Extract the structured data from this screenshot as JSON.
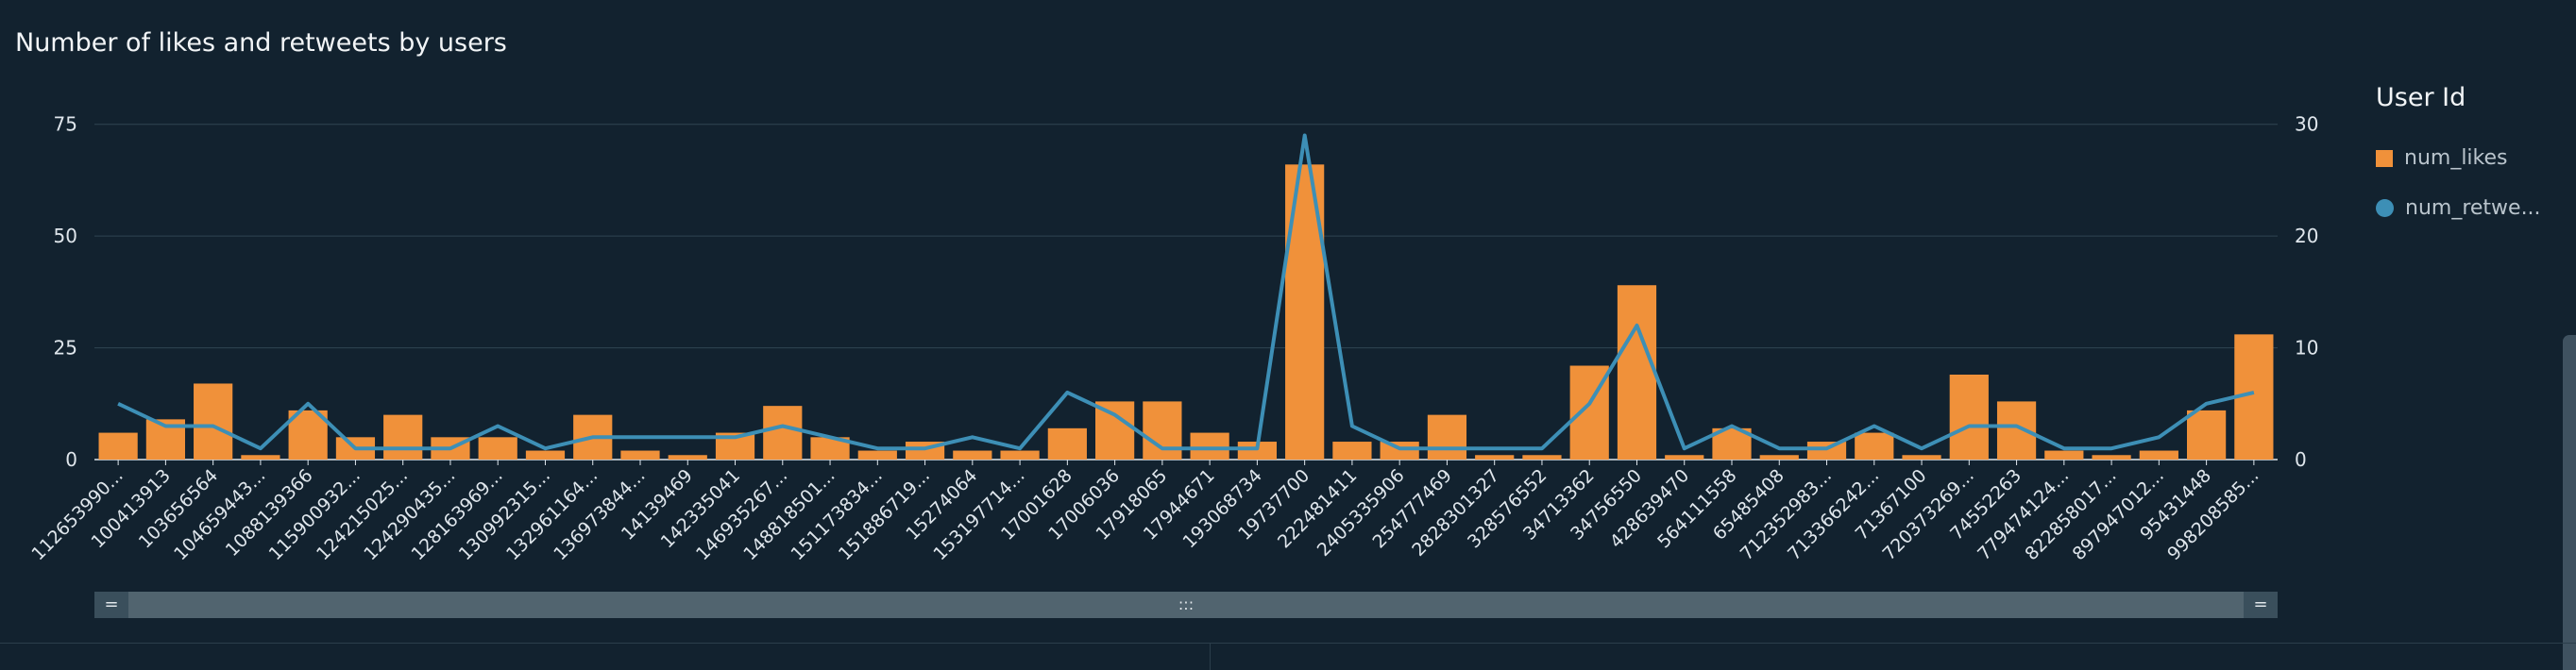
{
  "chart_data": {
    "type": "bar",
    "title": "Number of likes and retweets by users",
    "legend_title": "User Id",
    "legend_position": "right",
    "categories": [
      "112653990...",
      "100413913",
      "103656564",
      "104659443...",
      "1088139366",
      "115900932...",
      "124215025...",
      "124290435...",
      "128163969...",
      "130992315...",
      "132961164...",
      "136973844...",
      "14139469",
      "142335041",
      "146935267...",
      "148818501...",
      "151173834...",
      "151886719...",
      "15274064",
      "153197714...",
      "17001628",
      "17006036",
      "17918065",
      "17944671",
      "193068734",
      "19737700",
      "222481411",
      "2405335906",
      "254777469",
      "2828301327",
      "328576552",
      "34713362",
      "34756550",
      "428639470",
      "564111558",
      "65485408",
      "712352983...",
      "713366242...",
      "71367100",
      "720373269...",
      "74552263",
      "779474124...",
      "822858017...",
      "897947012...",
      "95431448",
      "998208585..."
    ],
    "series": [
      {
        "name": "num_likes",
        "type": "bar",
        "axis": "left",
        "color": "#f0913a",
        "values": [
          6,
          9,
          17,
          1,
          11,
          5,
          10,
          5,
          5,
          2,
          10,
          2,
          1,
          6,
          12,
          5,
          2,
          4,
          2,
          2,
          7,
          13,
          13,
          6,
          4,
          66,
          4,
          4,
          10,
          1,
          1,
          21,
          39,
          1,
          7,
          1,
          4,
          6,
          1,
          19,
          13,
          2,
          1,
          2,
          11,
          28
        ]
      },
      {
        "name": "num_retweets",
        "legend_label": "num_retwe...",
        "type": "line",
        "axis": "right",
        "color": "#3d8fb6",
        "values": [
          5,
          3,
          3,
          1,
          5,
          1,
          1,
          1,
          3,
          1,
          2,
          2,
          2,
          2,
          3,
          2,
          1,
          1,
          2,
          1,
          6,
          4,
          1,
          1,
          1,
          29,
          3,
          1,
          1,
          1,
          1,
          5,
          12,
          1,
          3,
          1,
          1,
          3,
          1,
          3,
          3,
          1,
          1,
          2,
          5,
          6
        ]
      }
    ],
    "y_left": {
      "lim": [
        0,
        80
      ],
      "ticks": [
        "0",
        "25",
        "50",
        "75"
      ]
    },
    "y_right": {
      "lim": [
        0,
        32
      ],
      "ticks": [
        "0",
        "10",
        "20",
        "30"
      ]
    },
    "grid": true
  },
  "scrollbar": {
    "left_handle": "=",
    "grip": ":::",
    "right_handle": "="
  }
}
